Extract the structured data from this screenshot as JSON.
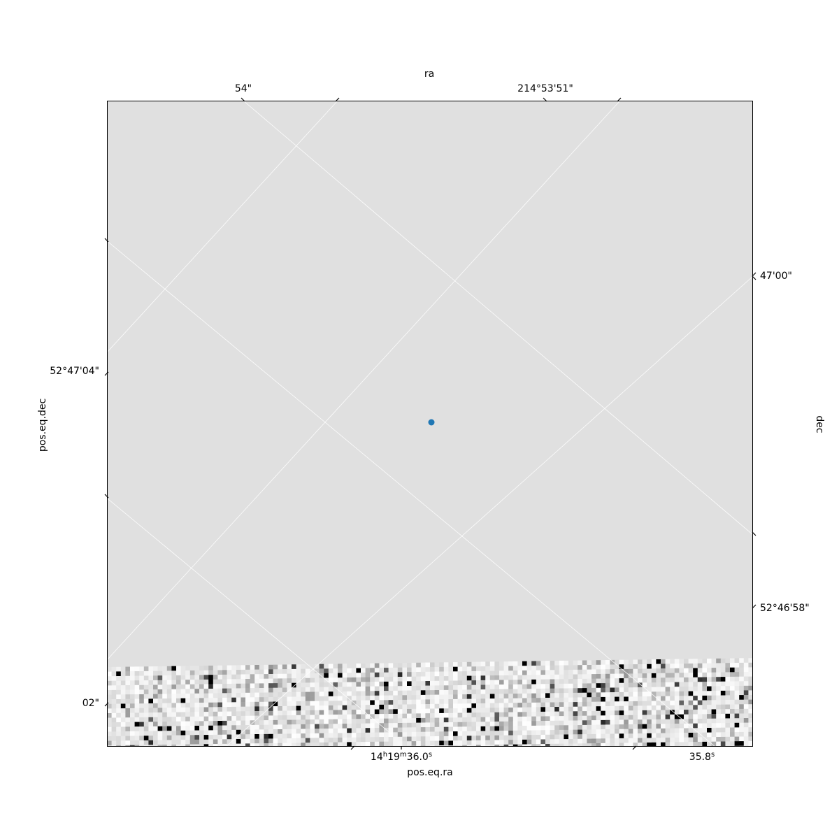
{
  "chart_data": {
    "type": "scatter",
    "title": "",
    "axes": {
      "bottom": {
        "label": "pos.eq.ra",
        "tick_labels": [
          "14h19m36.0s",
          "35.8s"
        ]
      },
      "left": {
        "label": "pos.eq.dec",
        "tick_labels": [
          "52°47'04\"",
          "02\""
        ]
      },
      "top": {
        "label": "ra",
        "tick_labels": [
          "54\"",
          "214°53'51\""
        ]
      },
      "right": {
        "label": "dec",
        "tick_labels": [
          "47'00\"",
          "52°46'58\""
        ]
      }
    },
    "tick_parts": {
      "ra_main": "14",
      "ra_h": "h",
      "ra_mid": "19",
      "ra_m": "m",
      "ra_sec": "36.0",
      "ra_s": "s",
      "ra2_val": "35.8",
      "ra2_s": "s"
    },
    "points": [
      {
        "ra": "14h19m35.9s",
        "dec": "52°47'03\""
      }
    ],
    "image": {
      "colormap": "gray_r",
      "background": "#e0e0e0",
      "noise_band": "bottom"
    },
    "grid": true,
    "marker_color": "#1f77b4",
    "grid_color": "#ffffff"
  }
}
